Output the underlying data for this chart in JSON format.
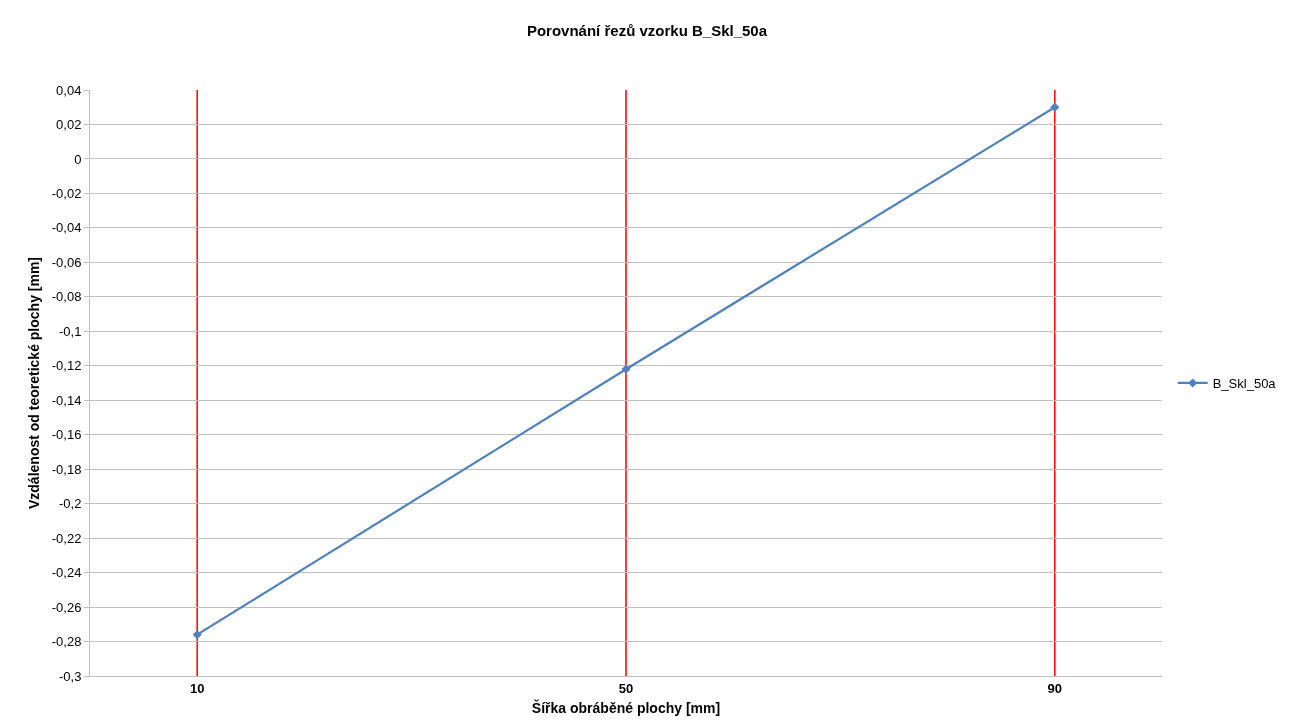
{
  "chart_data": {
    "type": "line",
    "title": "Porovnání řezů vzorku B_Skl_50a",
    "xlabel": "Šířka obráběné plochy [mm]",
    "ylabel": "Vzdálenost od teoretické plochy [mm]",
    "x": [
      10,
      50,
      90
    ],
    "series": [
      {
        "name": "B_Skl_50a",
        "color": "#4f81bd",
        "values": [
          -0.276,
          -0.122,
          0.03
        ]
      }
    ],
    "xlim": [
      0,
      100
    ],
    "xticks": [
      10,
      50,
      90
    ],
    "ylim": [
      -0.3,
      0.04
    ],
    "yticks": [
      {
        "value": 0.04,
        "label": "0,04"
      },
      {
        "value": 0.02,
        "label": "0,02"
      },
      0,
      {
        "value": -0.02,
        "label": "-0,02"
      },
      {
        "value": -0.04,
        "label": "-0,04"
      },
      {
        "value": -0.06,
        "label": "-0,06"
      },
      {
        "value": -0.08,
        "label": "-0,08"
      },
      {
        "value": -0.1,
        "label": "-0,1"
      },
      {
        "value": -0.12,
        "label": "-0,12"
      },
      {
        "value": -0.14,
        "label": "-0,14"
      },
      {
        "value": -0.16,
        "label": "-0,16"
      },
      {
        "value": -0.18,
        "label": "-0,18"
      },
      {
        "value": -0.2,
        "label": "-0,2"
      },
      {
        "value": -0.22,
        "label": "-0,22"
      },
      {
        "value": -0.24,
        "label": "-0,24"
      },
      {
        "value": -0.26,
        "label": "-0,26"
      },
      {
        "value": -0.28,
        "label": "-0,28"
      },
      {
        "value": -0.3,
        "label": "-0,3"
      }
    ],
    "ref_lines": [
      {
        "axis": "x",
        "value": 10,
        "color": "#ff0000"
      },
      {
        "axis": "x",
        "value": 50,
        "color": "#ff0000"
      },
      {
        "axis": "x",
        "value": 90,
        "color": "#ff0000"
      }
    ],
    "grid": "y",
    "legend": "right",
    "marker": "diamond",
    "line_style": "solid"
  }
}
